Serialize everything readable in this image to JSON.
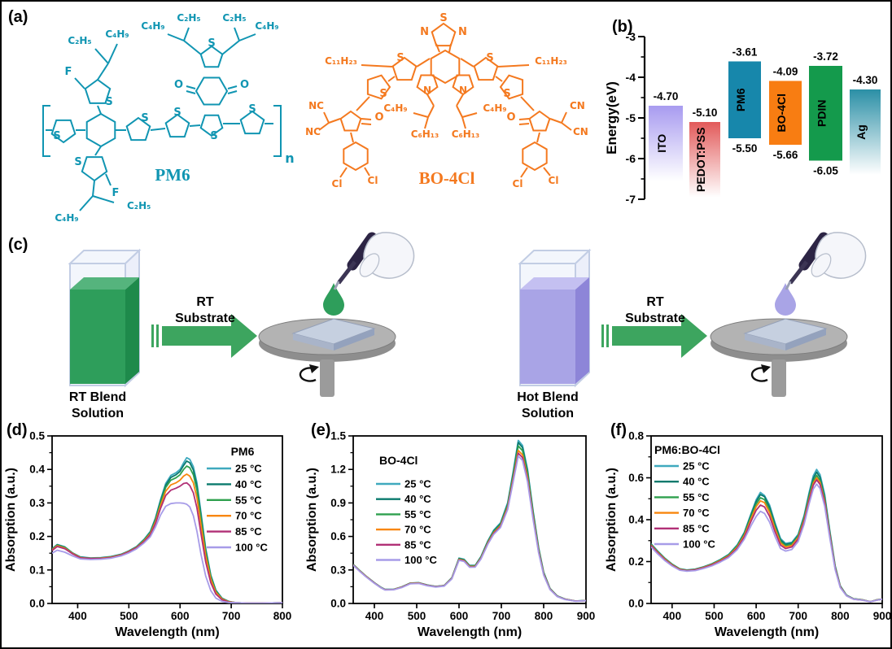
{
  "panels": {
    "a": "(a)",
    "b": "(b)",
    "c": "(c)",
    "d": "(d)",
    "e": "(e)",
    "f": "(f)"
  },
  "molecules": {
    "pm6": {
      "name": "PM6",
      "color": "#1095B2",
      "labels": {
        "c2h5": "C₂H₅",
        "c4h9": "C₄H₉",
        "f": "F",
        "s": "S",
        "o": "O",
        "n": "n"
      }
    },
    "bo4cl": {
      "name": "BO-4Cl",
      "color": "#F4791F",
      "labels": {
        "s": "S",
        "n": "N",
        "c11h23": "C₁₁H₂₃",
        "c4h9": "C₄H₉",
        "c6h13": "C₆H₁₃",
        "nc": "NC",
        "cn": "CN",
        "o": "O",
        "cl": "Cl"
      }
    }
  },
  "process": {
    "arrow_color": "#3DA55F",
    "left": {
      "beaker_label": [
        "RT Blend",
        "Solution"
      ],
      "arrow_label": [
        "RT",
        "Substrate"
      ],
      "solution_front": "#2E9E5B",
      "solution_top": "#55B47D",
      "solution_side": "#1E8A4B",
      "drop_color": "#2E9E5B"
    },
    "right": {
      "beaker_label": [
        "Hot Blend",
        "Solution"
      ],
      "arrow_label": [
        "RT",
        "Substrate"
      ],
      "solution_front": "#A9A4E6",
      "solution_top": "#C4C0F1",
      "solution_side": "#8D85D8",
      "drop_color": "#A9A4E6"
    }
  },
  "chart_data": [
    {
      "id": "energy",
      "type": "bar",
      "title": "",
      "ylabel": "Energy(eV)",
      "ylim": [
        -7,
        -3
      ],
      "yticks": [
        -3,
        -4,
        -5,
        -6,
        -7
      ],
      "bars": [
        {
          "name": "ITO",
          "top": -4.7,
          "top_label": "-4.70",
          "style": "fade",
          "color": "#A89BF0",
          "fade_end": -6.55
        },
        {
          "name": "PEDOT:PSS",
          "top": -5.1,
          "top_label": "-5.10",
          "style": "fade",
          "color": "#E25A5A",
          "fade_end": -6.95
        },
        {
          "name": "PM6",
          "top": -3.61,
          "bottom": -5.5,
          "top_label": "-3.61",
          "bottom_label": "-5.50",
          "style": "solid",
          "color": "#1787AB"
        },
        {
          "name": "BO-4Cl",
          "top": -4.09,
          "bottom": -5.66,
          "top_label": "-4.09",
          "bottom_label": "-5.66",
          "style": "solid",
          "color": "#F87D12"
        },
        {
          "name": "PDIN",
          "top": -3.72,
          "bottom": -6.05,
          "top_label": "-3.72",
          "bottom_label": "-6.05",
          "style": "solid",
          "color": "#149A4C"
        },
        {
          "name": "Ag",
          "top": -4.3,
          "top_label": "-4.30",
          "style": "fade",
          "color": "#2B8FA6",
          "fade_end": -6.4
        }
      ]
    },
    {
      "id": "abs-pm6",
      "type": "line",
      "title": "PM6",
      "xlabel": "Wavelength (nm)",
      "ylabel": "Absorption (a.u.)",
      "xlim": [
        350,
        800
      ],
      "ylim": [
        0,
        0.5
      ],
      "xticks": [
        400,
        500,
        600,
        700,
        800
      ],
      "yticks": [
        0.0,
        0.1,
        0.2,
        0.3,
        0.4,
        0.5
      ],
      "ydecimals": 1,
      "legend_position": "top-right",
      "x": [
        350,
        360,
        375,
        390,
        405,
        425,
        445,
        465,
        485,
        500,
        515,
        530,
        542,
        552,
        562,
        572,
        582,
        592,
        600,
        607,
        613,
        619,
        626,
        633,
        641,
        650,
        660,
        670,
        682,
        695,
        710,
        730,
        760,
        800
      ],
      "series": [
        {
          "name": "25 °C",
          "color": "#3FA9BE",
          "y": [
            0.163,
            0.176,
            0.169,
            0.151,
            0.139,
            0.136,
            0.137,
            0.14,
            0.147,
            0.157,
            0.17,
            0.192,
            0.215,
            0.255,
            0.31,
            0.358,
            0.382,
            0.39,
            0.4,
            0.42,
            0.435,
            0.43,
            0.408,
            0.36,
            0.27,
            0.165,
            0.085,
            0.04,
            0.016,
            0.006,
            0.002,
            0.001,
            0.001,
            0.002
          ]
        },
        {
          "name": "40 °C",
          "color": "#0A7A6D",
          "y": [
            0.162,
            0.175,
            0.168,
            0.15,
            0.138,
            0.135,
            0.136,
            0.139,
            0.146,
            0.156,
            0.169,
            0.19,
            0.213,
            0.252,
            0.306,
            0.353,
            0.376,
            0.384,
            0.394,
            0.412,
            0.425,
            0.42,
            0.398,
            0.35,
            0.262,
            0.16,
            0.082,
            0.038,
            0.015,
            0.006,
            0.002,
            0.001,
            0.001,
            0.002
          ]
        },
        {
          "name": "55 °C",
          "color": "#2FA04E",
          "y": [
            0.161,
            0.174,
            0.167,
            0.15,
            0.137,
            0.135,
            0.135,
            0.138,
            0.145,
            0.155,
            0.168,
            0.189,
            0.211,
            0.248,
            0.3,
            0.346,
            0.368,
            0.375,
            0.384,
            0.4,
            0.41,
            0.405,
            0.384,
            0.338,
            0.252,
            0.154,
            0.079,
            0.036,
            0.014,
            0.005,
            0.002,
            0.001,
            0.001,
            0.002
          ]
        },
        {
          "name": "70 °C",
          "color": "#F8860D",
          "y": [
            0.16,
            0.172,
            0.165,
            0.149,
            0.137,
            0.134,
            0.135,
            0.138,
            0.145,
            0.155,
            0.167,
            0.187,
            0.208,
            0.243,
            0.292,
            0.335,
            0.354,
            0.36,
            0.368,
            0.38,
            0.386,
            0.38,
            0.36,
            0.315,
            0.234,
            0.142,
            0.072,
            0.033,
            0.013,
            0.005,
            0.002,
            0.001,
            0.001,
            0.002
          ]
        },
        {
          "name": "85 °C",
          "color": "#B13076",
          "y": [
            0.158,
            0.17,
            0.163,
            0.148,
            0.136,
            0.134,
            0.134,
            0.137,
            0.144,
            0.154,
            0.166,
            0.185,
            0.205,
            0.238,
            0.284,
            0.322,
            0.338,
            0.344,
            0.35,
            0.358,
            0.36,
            0.352,
            0.33,
            0.285,
            0.208,
            0.124,
            0.062,
            0.028,
            0.011,
            0.004,
            0.002,
            0.001,
            0.001,
            0.002
          ]
        },
        {
          "name": "100 °C",
          "color": "#A79CE8",
          "y": [
            0.15,
            0.159,
            0.153,
            0.142,
            0.133,
            0.131,
            0.132,
            0.135,
            0.142,
            0.151,
            0.163,
            0.181,
            0.199,
            0.228,
            0.264,
            0.29,
            0.298,
            0.3,
            0.3,
            0.299,
            0.296,
            0.288,
            0.262,
            0.215,
            0.146,
            0.082,
            0.038,
            0.016,
            0.006,
            0.003,
            0.002,
            0.001,
            0.001,
            0.002
          ]
        }
      ]
    },
    {
      "id": "abs-bo4cl",
      "type": "line",
      "title": "BO-4Cl",
      "xlabel": "Wavelength (nm)",
      "ylabel": "Absorption (a.u.)",
      "xlim": [
        350,
        900
      ],
      "ylim": [
        0,
        1.5
      ],
      "xticks": [
        400,
        500,
        600,
        700,
        800,
        900
      ],
      "yticks": [
        0.0,
        0.3,
        0.6,
        0.9,
        1.2,
        1.5
      ],
      "ydecimals": 1,
      "legend_position": "top-left",
      "x": [
        350,
        365,
        380,
        400,
        415,
        425,
        445,
        465,
        485,
        505,
        525,
        545,
        565,
        583,
        600,
        612,
        625,
        638,
        652,
        668,
        682,
        698,
        715,
        728,
        740,
        750,
        762,
        775,
        788,
        800,
        815,
        832,
        850,
        875,
        900
      ],
      "series": [
        {
          "name": "25 °C",
          "color": "#3FA9BE",
          "y": [
            0.35,
            0.296,
            0.246,
            0.186,
            0.146,
            0.126,
            0.126,
            0.149,
            0.183,
            0.186,
            0.165,
            0.153,
            0.161,
            0.231,
            0.406,
            0.396,
            0.341,
            0.341,
            0.421,
            0.561,
            0.656,
            0.722,
            0.902,
            1.182,
            1.46,
            1.415,
            1.2,
            0.83,
            0.5,
            0.28,
            0.135,
            0.068,
            0.04,
            0.022,
            0.026
          ]
        },
        {
          "name": "40 °C",
          "color": "#0A7A6D",
          "y": [
            0.349,
            0.295,
            0.245,
            0.185,
            0.145,
            0.125,
            0.125,
            0.148,
            0.182,
            0.185,
            0.164,
            0.152,
            0.16,
            0.229,
            0.402,
            0.392,
            0.338,
            0.338,
            0.417,
            0.555,
            0.649,
            0.714,
            0.89,
            1.163,
            1.44,
            1.396,
            1.184,
            0.818,
            0.493,
            0.276,
            0.133,
            0.067,
            0.039,
            0.022,
            0.026
          ]
        },
        {
          "name": "55 °C",
          "color": "#2FA04E",
          "y": [
            0.348,
            0.294,
            0.244,
            0.184,
            0.144,
            0.124,
            0.125,
            0.147,
            0.181,
            0.184,
            0.163,
            0.151,
            0.159,
            0.227,
            0.398,
            0.388,
            0.334,
            0.335,
            0.412,
            0.549,
            0.641,
            0.705,
            0.877,
            1.141,
            1.41,
            1.368,
            1.16,
            0.802,
            0.483,
            0.271,
            0.131,
            0.066,
            0.039,
            0.021,
            0.025
          ]
        },
        {
          "name": "70 °C",
          "color": "#F8860D",
          "y": [
            0.346,
            0.292,
            0.243,
            0.183,
            0.143,
            0.123,
            0.124,
            0.146,
            0.18,
            0.183,
            0.162,
            0.15,
            0.158,
            0.225,
            0.394,
            0.384,
            0.331,
            0.331,
            0.407,
            0.542,
            0.633,
            0.696,
            0.864,
            1.122,
            1.37,
            1.33,
            1.128,
            0.781,
            0.47,
            0.264,
            0.128,
            0.064,
            0.038,
            0.021,
            0.025
          ]
        },
        {
          "name": "85 °C",
          "color": "#B13076",
          "y": [
            0.344,
            0.29,
            0.241,
            0.182,
            0.142,
            0.122,
            0.123,
            0.145,
            0.178,
            0.181,
            0.161,
            0.149,
            0.157,
            0.223,
            0.39,
            0.38,
            0.327,
            0.328,
            0.403,
            0.536,
            0.626,
            0.688,
            0.853,
            1.106,
            1.345,
            1.306,
            1.108,
            0.767,
            0.462,
            0.259,
            0.126,
            0.063,
            0.037,
            0.021,
            0.025
          ]
        },
        {
          "name": "100 °C",
          "color": "#A79CE8",
          "y": [
            0.342,
            0.288,
            0.239,
            0.18,
            0.141,
            0.121,
            0.122,
            0.143,
            0.176,
            0.179,
            0.159,
            0.147,
            0.155,
            0.22,
            0.386,
            0.376,
            0.324,
            0.325,
            0.398,
            0.53,
            0.618,
            0.68,
            0.842,
            1.09,
            1.32,
            1.281,
            1.088,
            0.752,
            0.453,
            0.254,
            0.124,
            0.062,
            0.036,
            0.02,
            0.025
          ]
        }
      ]
    },
    {
      "id": "abs-blend",
      "type": "line",
      "title": "PM6:BO-4Cl",
      "xlabel": "Wavelength (nm)",
      "ylabel": "Absorption (a.u.)",
      "xlim": [
        350,
        900
      ],
      "ylim": [
        0,
        0.8
      ],
      "xticks": [
        400,
        500,
        600,
        700,
        800,
        900
      ],
      "yticks": [
        0.0,
        0.2,
        0.4,
        0.6,
        0.8
      ],
      "ydecimals": 1,
      "legend_position": "top-left",
      "x": [
        350,
        365,
        382,
        400,
        418,
        435,
        455,
        475,
        495,
        515,
        535,
        555,
        572,
        588,
        600,
        610,
        620,
        632,
        645,
        658,
        670,
        685,
        700,
        714,
        726,
        736,
        744,
        752,
        763,
        775,
        788,
        800,
        815,
        832,
        852,
        872,
        888,
        900
      ],
      "series": [
        {
          "name": "25 °C",
          "color": "#3FA9BE",
          "y": [
            0.285,
            0.252,
            0.218,
            0.188,
            0.166,
            0.16,
            0.164,
            0.175,
            0.19,
            0.21,
            0.235,
            0.28,
            0.34,
            0.43,
            0.495,
            0.53,
            0.515,
            0.47,
            0.385,
            0.31,
            0.287,
            0.292,
            0.33,
            0.42,
            0.53,
            0.61,
            0.64,
            0.615,
            0.52,
            0.35,
            0.18,
            0.085,
            0.04,
            0.022,
            0.018,
            0.008,
            0.018,
            0.02
          ]
        },
        {
          "name": "40 °C",
          "color": "#0A7A6D",
          "y": [
            0.283,
            0.25,
            0.216,
            0.187,
            0.165,
            0.159,
            0.163,
            0.174,
            0.189,
            0.209,
            0.233,
            0.277,
            0.336,
            0.424,
            0.487,
            0.52,
            0.51,
            0.46,
            0.377,
            0.304,
            0.282,
            0.288,
            0.325,
            0.413,
            0.52,
            0.598,
            0.627,
            0.602,
            0.508,
            0.342,
            0.176,
            0.083,
            0.039,
            0.022,
            0.018,
            0.008,
            0.018,
            0.02
          ]
        },
        {
          "name": "55 °C",
          "color": "#2FA04E",
          "y": [
            0.281,
            0.248,
            0.215,
            0.186,
            0.164,
            0.158,
            0.162,
            0.173,
            0.188,
            0.207,
            0.231,
            0.274,
            0.331,
            0.415,
            0.475,
            0.505,
            0.496,
            0.447,
            0.366,
            0.296,
            0.276,
            0.283,
            0.32,
            0.405,
            0.51,
            0.585,
            0.612,
            0.588,
            0.497,
            0.335,
            0.172,
            0.081,
            0.038,
            0.021,
            0.017,
            0.008,
            0.017,
            0.02
          ]
        },
        {
          "name": "70 °C",
          "color": "#F8860D",
          "y": [
            0.279,
            0.246,
            0.213,
            0.184,
            0.163,
            0.157,
            0.161,
            0.172,
            0.186,
            0.205,
            0.228,
            0.269,
            0.325,
            0.405,
            0.462,
            0.49,
            0.481,
            0.434,
            0.356,
            0.289,
            0.27,
            0.277,
            0.314,
            0.398,
            0.5,
            0.574,
            0.6,
            0.577,
            0.488,
            0.329,
            0.169,
            0.08,
            0.037,
            0.021,
            0.017,
            0.008,
            0.017,
            0.02
          ]
        },
        {
          "name": "85 °C",
          "color": "#B13076",
          "y": [
            0.276,
            0.243,
            0.21,
            0.182,
            0.161,
            0.156,
            0.16,
            0.17,
            0.184,
            0.202,
            0.225,
            0.264,
            0.318,
            0.393,
            0.445,
            0.47,
            0.461,
            0.416,
            0.342,
            0.279,
            0.262,
            0.27,
            0.307,
            0.39,
            0.492,
            0.565,
            0.59,
            0.568,
            0.48,
            0.324,
            0.166,
            0.078,
            0.037,
            0.02,
            0.016,
            0.008,
            0.016,
            0.02
          ]
        },
        {
          "name": "100 °C",
          "color": "#A79CE8",
          "y": [
            0.27,
            0.238,
            0.206,
            0.179,
            0.159,
            0.154,
            0.157,
            0.167,
            0.18,
            0.198,
            0.22,
            0.257,
            0.307,
            0.372,
            0.416,
            0.44,
            0.43,
            0.388,
            0.32,
            0.262,
            0.25,
            0.258,
            0.296,
            0.378,
            0.476,
            0.546,
            0.57,
            0.549,
            0.464,
            0.314,
            0.161,
            0.076,
            0.036,
            0.02,
            0.016,
            0.008,
            0.016,
            0.02
          ]
        }
      ]
    }
  ]
}
